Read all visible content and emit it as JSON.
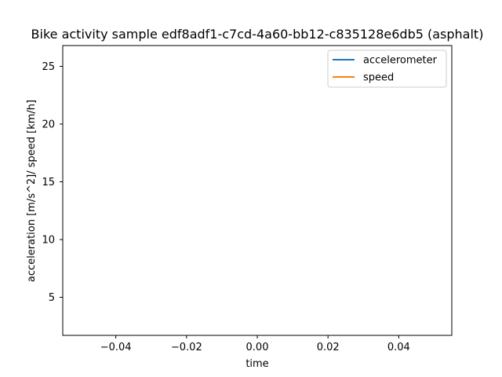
{
  "chart_data": {
    "type": "line",
    "title": "Bike activity sample edf8adf1-c7cd-4a60-bb12-c835128e6db5 (asphalt)",
    "xlabel": "time",
    "ylabel": "acceleration [m/s^2]/ speed [km/h]",
    "xlim": [
      -0.055,
      0.055
    ],
    "ylim": [
      1.7,
      26.8
    ],
    "x_ticks": [
      -0.04,
      -0.02,
      0.0,
      0.02,
      0.04
    ],
    "x_tick_labels": [
      "−0.04",
      "−0.02",
      "0.00",
      "0.02",
      "0.04"
    ],
    "y_ticks": [
      5,
      10,
      15,
      20,
      25
    ],
    "y_tick_labels": [
      "5",
      "10",
      "15",
      "20",
      "25"
    ],
    "grid": false,
    "legend_position": "top-right",
    "series": [
      {
        "name": "accelerometer",
        "color": "#1f77b4",
        "x": [],
        "y": []
      },
      {
        "name": "speed",
        "color": "#ff7f0e",
        "x": [],
        "y": []
      }
    ]
  }
}
